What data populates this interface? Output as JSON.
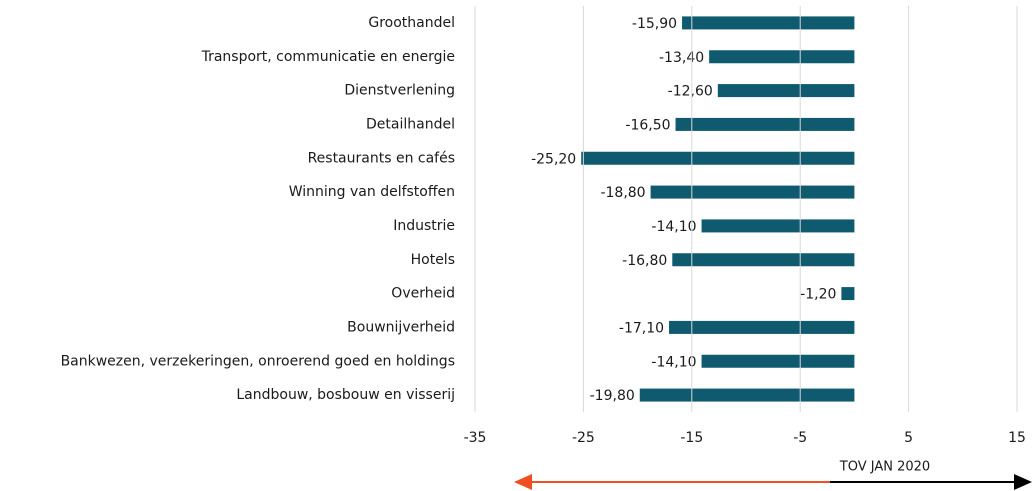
{
  "chart_data": {
    "type": "hbar",
    "categories": [
      "Groothandel",
      "Transport, communicatie en energie",
      "Dienstverlening",
      "Detailhandel",
      "Restaurants en cafés",
      "Winning van delfstoffen",
      "Industrie",
      "Hotels",
      "Overheid",
      "Bouwnijverheid",
      "Bankwezen, verzekeringen, onroerend goed en holdings",
      "Landbouw, bosbouw en visserij"
    ],
    "values": [
      -15.9,
      -13.4,
      -12.6,
      -16.5,
      -25.2,
      -18.8,
      -14.1,
      -16.8,
      -1.2,
      -17.1,
      -14.1,
      -19.8
    ],
    "value_labels": [
      "-15,90",
      "-13,40",
      "-12,60",
      "-16,50",
      "-25,20",
      "-18,80",
      "-14,10",
      "-16,80",
      "-1,20",
      "-17,10",
      "-14,10",
      "-19,80"
    ],
    "color": "#0f5a6e",
    "xlim": [
      -35,
      15
    ],
    "xticks": [
      -35,
      -25,
      -15,
      -5,
      5,
      15
    ],
    "grid": true,
    "annotation": "TOV JAN 2020"
  }
}
